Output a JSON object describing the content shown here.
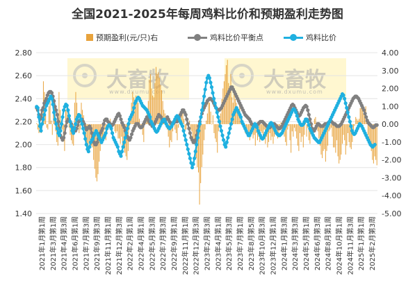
{
  "title": "全国2021-2025年每周鸡料比价和预期盈利走势图",
  "watermark": {
    "brand": "大畜牧",
    "url": "www.dxumu.com"
  },
  "chart_data": {
    "type": "bar+line",
    "title": "全国2021-2025年每周鸡料比价和预期盈利走势图",
    "left_axis": {
      "ylim": [
        1.4,
        2.8
      ],
      "ticks": [
        "1.40",
        "1.60",
        "1.80",
        "2.00",
        "2.20",
        "2.40",
        "2.60",
        "2.80"
      ]
    },
    "right_axis": {
      "ylim": [
        -5.0,
        4.0
      ],
      "ticks": [
        "-5.00",
        "-4.00",
        "-3.00",
        "-2.00",
        "-1.00",
        "0.00",
        "1.00",
        "2.00",
        "3.00",
        "4.00"
      ]
    },
    "x_tick_labels": [
      "2021年1月第1周",
      "2021年3月第1周",
      "2021年4月第3周",
      "2021年6月第1周",
      "2021年7月第3周",
      "2021年9月第3周",
      "2021年11月第1周",
      "2021年12月第3周",
      "2022年2月第1周",
      "2022年4月第1周",
      "2022年5月第3周",
      "2022年7月第3周",
      "2022年9月第1周",
      "2022年11月第1周",
      "2022年12月第3周",
      "2023年2月第3周",
      "2023年4月第1周",
      "2023年5月第3周",
      "2023年7月第1周",
      "2023年8月第5周",
      "2023年10月第3周",
      "2023年12月第1周",
      "2024年1月第3周",
      "2024年3月第3周",
      "2024年5月第1周",
      "2024年6月第3周",
      "2024年8月第1周",
      "2024年10月第1周",
      "2024年11月第3周",
      "2025年1月第1周",
      "2025年2月第3周"
    ],
    "legend": {
      "position": "top"
    },
    "series": [
      {
        "name": "预期盈利(元/只)右",
        "type": "bar",
        "axis": "right",
        "color": "#E8A33C",
        "values": [
          0.05,
          -0.3,
          -0.5,
          0.6,
          -0.5,
          0.8,
          2.4,
          1.8,
          0.5,
          -0.2,
          -0.3,
          1.0,
          1.3,
          0.2,
          -0.6,
          1.6,
          0.9,
          -0.4,
          -1.0,
          -1.2,
          1.8,
          0.8,
          0.2,
          -0.3,
          -0.8,
          -1.5,
          0.8,
          1.0,
          0.5,
          -0.2,
          -0.6,
          -0.9,
          -1.1,
          -1.2,
          1.2,
          1.8,
          1.2,
          0.4,
          -0.5,
          -0.3,
          1.2,
          0.8,
          0.5,
          -0.2,
          -0.8,
          -1.5,
          -1.3,
          -1.1,
          -0.9,
          -1.2,
          -1.3,
          -2.0,
          -2.5,
          -3.0,
          -3.2,
          -2.8,
          -2.1,
          -1.5,
          -1.1,
          -1.0,
          -0.7,
          -0.3,
          -0.9,
          -0.5,
          -0.3,
          0.1,
          0.3,
          -0.2,
          -0.1,
          0.0,
          -0.4,
          -0.5,
          -0.4,
          -0.8,
          -0.8,
          -1.1,
          -0.7,
          -1.2,
          -1.0,
          -1.6,
          -1.8,
          -2.0,
          -1.5,
          -0.3,
          0.4,
          1.2,
          1.8,
          1.5,
          1.2,
          1.6,
          1.3,
          1.2,
          0.3,
          -0.3,
          -0.1,
          -0.6,
          -1.0,
          0.2,
          0.3,
          0.6,
          1.3,
          2.5,
          2.8,
          2.0,
          1.6,
          1.5,
          2.3,
          3.2,
          2.8,
          2.9,
          2.6,
          2.2,
          1.9,
          1.3,
          0.8,
          0.6,
          0.2,
          -0.3,
          -0.7,
          -1.3,
          -0.9,
          -1.0,
          -0.4,
          0.2,
          -0.3,
          -0.5,
          -0.9,
          -0.2,
          0.1,
          0.3,
          0.5,
          0.6,
          0.3,
          -0.4,
          -0.3,
          0.0,
          -0.2,
          0.2,
          -0.3,
          -0.4,
          -0.8,
          -1.0,
          -1.2,
          -1.9,
          -2.4,
          -2.7,
          -4.5,
          -3.3,
          -2.4,
          -1.7,
          -0.9,
          -0.3,
          0.2,
          0.6,
          1.3,
          1.2,
          0.7,
          0.0,
          0.5,
          -0.5,
          -0.8,
          -1.0,
          -1.6,
          -0.4,
          0.3,
          0.6,
          1.4,
          2.0,
          2.4,
          2.8,
          3.3,
          3.6,
          2.3,
          2.0,
          2.8,
          1.5,
          1.2,
          1.8,
          1.4,
          1.2,
          0.9,
          0.8,
          1.1,
          0.6,
          0.4,
          0.1,
          -0.2,
          -0.5,
          -0.4,
          -0.3,
          -0.5,
          -0.9,
          -0.7,
          -0.5,
          -0.8,
          -0.6,
          -1.2,
          -0.5,
          -0.9,
          -0.7,
          -1.0,
          -0.4,
          -0.5,
          -0.8,
          -0.3,
          -1.1,
          -0.7,
          -1.3,
          -1.0,
          -0.5,
          -0.9,
          -0.7,
          -1.1,
          -0.7,
          -0.4,
          -0.3,
          -0.8,
          -0.5,
          -0.2,
          0.1,
          -0.3,
          -0.5,
          -0.7,
          -1.0,
          -1.2,
          -0.3,
          -0.1,
          -0.9,
          -1.6,
          -0.4,
          -0.7,
          -0.2,
          -0.4,
          -0.8,
          -1.2,
          -1.5,
          -0.5,
          -1.0,
          -0.7,
          -1.3,
          -0.6,
          0.3,
          -0.7,
          -0.2,
          -0.9,
          -1.1,
          -0.4,
          -0.3,
          0.0,
          0.3,
          0.4,
          -0.1,
          -0.4,
          -0.8,
          -1.2,
          -1.7,
          -1.9,
          -1.5,
          -1.4,
          -2.1,
          -1.5,
          -1.2,
          -0.4,
          -0.3,
          -0.2,
          -0.7,
          -1.3,
          -1.3,
          -1.6,
          -0.9,
          -1.8,
          -2.2,
          -2.0,
          -1.7,
          -1.1,
          -0.6,
          -0.9,
          -1.7,
          -1.2,
          -0.5,
          -1.0,
          -1.3,
          -1.4,
          -1.0,
          -0.5,
          -0.1,
          0.4,
          0.3,
          0.2,
          0.3,
          0.9,
          1.1,
          1.0,
          0.6,
          0.8,
          1.0,
          0.3,
          -0.6,
          -1.0,
          -1.2,
          -1.5,
          -2.0,
          -2.2,
          -1.8,
          -2.0,
          -2.3
        ]
      },
      {
        "name": "鸡料比价平衡点",
        "type": "line",
        "axis": "left",
        "color": "#808080",
        "values": [
          2.32,
          2.3,
          2.26,
          2.22,
          2.24,
          2.3,
          2.32,
          2.36,
          2.38,
          2.4,
          2.43,
          2.45,
          2.46,
          2.46,
          2.45,
          2.42,
          2.38,
          2.33,
          2.3,
          2.26,
          2.2,
          2.14,
          2.08,
          2.06,
          2.04,
          2.06,
          2.1,
          2.16,
          2.2,
          2.22,
          2.22,
          2.2,
          2.18,
          2.15,
          2.14,
          2.12,
          2.12,
          2.14,
          2.17,
          2.2,
          2.21,
          2.22,
          2.22,
          2.2,
          2.18,
          2.15,
          2.13,
          2.14,
          2.15,
          2.16,
          2.14,
          2.1,
          2.06,
          2.02,
          2.0,
          2.0,
          2.02,
          2.05,
          2.08,
          2.1,
          2.12,
          2.14,
          2.18,
          2.21,
          2.22,
          2.22,
          2.2,
          2.19,
          2.18,
          2.16,
          2.17,
          2.18,
          2.2,
          2.22,
          2.24,
          2.26,
          2.27,
          2.25,
          2.22,
          2.19,
          2.17,
          2.15,
          2.12,
          2.1,
          2.07,
          2.05,
          2.04,
          2.06,
          2.09,
          2.12,
          2.14,
          2.16,
          2.18,
          2.18,
          2.18,
          2.16,
          2.15,
          2.15,
          2.16,
          2.18,
          2.2,
          2.22,
          2.24,
          2.22,
          2.2,
          2.18,
          2.18,
          2.16,
          2.17,
          2.18,
          2.2,
          2.22,
          2.24,
          2.26,
          2.25,
          2.24,
          2.22,
          2.2,
          2.2,
          2.21,
          2.22,
          2.24,
          2.22,
          2.2,
          2.19,
          2.18,
          2.18,
          2.19,
          2.2,
          2.2,
          2.2,
          2.22,
          2.24,
          2.26,
          2.28,
          2.3,
          2.3,
          2.28,
          2.26,
          2.22,
          2.18,
          2.14,
          2.1,
          2.06,
          2.04,
          2.02,
          2.02,
          2.04,
          2.08,
          2.12,
          2.16,
          2.2,
          2.24,
          2.27,
          2.3,
          2.32,
          2.34,
          2.36,
          2.38,
          2.39,
          2.4,
          2.4,
          2.39,
          2.38,
          2.36,
          2.34,
          2.32,
          2.31,
          2.3,
          2.3,
          2.31,
          2.32,
          2.34,
          2.36,
          2.38,
          2.4,
          2.42,
          2.44,
          2.46,
          2.48,
          2.5,
          2.5,
          2.48,
          2.46,
          2.44,
          2.42,
          2.4,
          2.38,
          2.36,
          2.34,
          2.32,
          2.3,
          2.28,
          2.26,
          2.25,
          2.24,
          2.23,
          2.22,
          2.2,
          2.18,
          2.17,
          2.16,
          2.16,
          2.16,
          2.17,
          2.18,
          2.19,
          2.2,
          2.2,
          2.2,
          2.19,
          2.18,
          2.17,
          2.16,
          2.16,
          2.15,
          2.15,
          2.16,
          2.17,
          2.18,
          2.18,
          2.17,
          2.16,
          2.15,
          2.14,
          2.14,
          2.15,
          2.16,
          2.18,
          2.2,
          2.22,
          2.24,
          2.26,
          2.28,
          2.3,
          2.32,
          2.34,
          2.35,
          2.34,
          2.32,
          2.3,
          2.28,
          2.26,
          2.25,
          2.26,
          2.28,
          2.3,
          2.32,
          2.33,
          2.34,
          2.33,
          2.3,
          2.26,
          2.22,
          2.18,
          2.14,
          2.12,
          2.12,
          2.14,
          2.16,
          2.18,
          2.18,
          2.17,
          2.16,
          2.16,
          2.16,
          2.17,
          2.18,
          2.18,
          2.18,
          2.19,
          2.2,
          2.2,
          2.2,
          2.19,
          2.18,
          2.18,
          2.17,
          2.16,
          2.16,
          2.16,
          2.17,
          2.18,
          2.2,
          2.22,
          2.24,
          2.26,
          2.28,
          2.3,
          2.32,
          2.34,
          2.36,
          2.38,
          2.4,
          2.41,
          2.42,
          2.42,
          2.41,
          2.4,
          2.38,
          2.36,
          2.34,
          2.32,
          2.3,
          2.27,
          2.24,
          2.21,
          2.19,
          2.18,
          2.17,
          2.16,
          2.15,
          2.15,
          2.16,
          2.17,
          2.17
        ]
      },
      {
        "name": "鸡料比价",
        "type": "line",
        "axis": "left",
        "color": "#1FB0E0",
        "values": [
          2.33,
          2.32,
          2.24,
          2.16,
          2.12,
          2.18,
          2.22,
          2.26,
          2.3,
          2.34,
          2.36,
          2.38,
          2.4,
          2.42,
          2.4,
          2.35,
          2.28,
          2.22,
          2.18,
          2.14,
          2.1,
          2.08,
          2.12,
          2.18,
          2.24,
          2.3,
          2.33,
          2.35,
          2.34,
          2.3,
          2.25,
          2.2,
          2.16,
          2.12,
          2.1,
          2.14,
          2.18,
          2.22,
          2.24,
          2.26,
          2.25,
          2.22,
          2.18,
          2.14,
          2.1,
          2.05,
          2.0,
          1.96,
          1.94,
          1.98,
          2.02,
          2.04,
          2.05,
          2.08,
          2.1,
          2.12,
          2.1,
          2.08,
          2.06,
          2.04,
          2.02,
          2.04,
          2.06,
          2.08,
          2.1,
          2.14,
          2.16,
          2.17,
          2.16,
          2.14,
          2.1,
          2.06,
          2.04,
          2.02,
          2.0,
          1.98,
          1.94,
          1.92,
          1.9,
          1.94,
          1.98,
          2.02,
          2.06,
          2.1,
          2.14,
          2.18,
          2.22,
          2.24,
          2.26,
          2.28,
          2.32,
          2.36,
          2.38,
          2.4,
          2.41,
          2.4,
          2.38,
          2.36,
          2.34,
          2.33,
          2.32,
          2.31,
          2.3,
          2.28,
          2.26,
          2.24,
          2.2,
          2.18,
          2.16,
          2.14,
          2.12,
          2.11,
          2.12,
          2.14,
          2.16,
          2.18,
          2.2,
          2.21,
          2.22,
          2.2,
          2.18,
          2.16,
          2.15,
          2.14,
          2.15,
          2.16,
          2.18,
          2.2,
          2.22,
          2.24,
          2.25,
          2.24,
          2.22,
          2.2,
          2.18,
          2.16,
          2.12,
          2.08,
          2.04,
          2.0,
          1.96,
          1.92,
          1.88,
          1.84,
          1.8,
          1.83,
          1.88,
          1.94,
          2.0,
          2.06,
          2.12,
          2.18,
          2.24,
          2.3,
          2.36,
          2.42,
          2.48,
          2.54,
          2.58,
          2.6,
          2.58,
          2.54,
          2.5,
          2.45,
          2.4,
          2.36,
          2.32,
          2.28,
          2.24,
          2.2,
          2.16,
          2.12,
          2.08,
          2.04,
          2.0,
          1.98,
          2.02,
          2.06,
          2.1,
          2.14,
          2.18,
          2.22,
          2.26,
          2.28,
          2.3,
          2.32,
          2.3,
          2.28,
          2.26,
          2.24,
          2.2,
          2.18,
          2.16,
          2.14,
          2.12,
          2.1,
          2.08,
          2.08,
          2.1,
          2.12,
          2.14,
          2.16,
          2.18,
          2.17,
          2.15,
          2.12,
          2.1,
          2.08,
          2.06,
          2.05,
          2.06,
          2.08,
          2.1,
          2.12,
          2.14,
          2.16,
          2.18,
          2.19,
          2.18,
          2.16,
          2.14,
          2.12,
          2.1,
          2.09,
          2.08,
          2.08,
          2.09,
          2.1,
          2.12,
          2.14,
          2.16,
          2.18,
          2.2,
          2.22,
          2.24,
          2.26,
          2.28,
          2.3,
          2.31,
          2.3,
          2.28,
          2.25,
          2.22,
          2.2,
          2.18,
          2.17,
          2.17,
          2.18,
          2.2,
          2.22,
          2.22,
          2.2,
          2.17,
          2.14,
          2.12,
          2.1,
          2.08,
          2.06,
          2.05,
          2.04,
          2.03,
          2.02,
          2.02,
          2.04,
          2.06,
          2.08,
          2.1,
          2.12,
          2.14,
          2.16,
          2.18,
          2.2,
          2.22,
          2.24,
          2.26,
          2.28,
          2.3,
          2.32,
          2.34,
          2.36,
          2.38,
          2.4,
          2.42,
          2.44,
          2.43,
          2.4,
          2.36,
          2.32,
          2.28,
          2.24,
          2.2,
          2.16,
          2.12,
          2.1,
          2.09,
          2.1,
          2.12,
          2.14,
          2.16,
          2.18,
          2.17,
          2.16,
          2.14,
          2.12,
          2.1,
          2.08,
          2.06,
          2.04,
          2.02,
          2.0,
          1.99,
          1.98,
          1.99,
          2.0
        ]
      }
    ]
  }
}
